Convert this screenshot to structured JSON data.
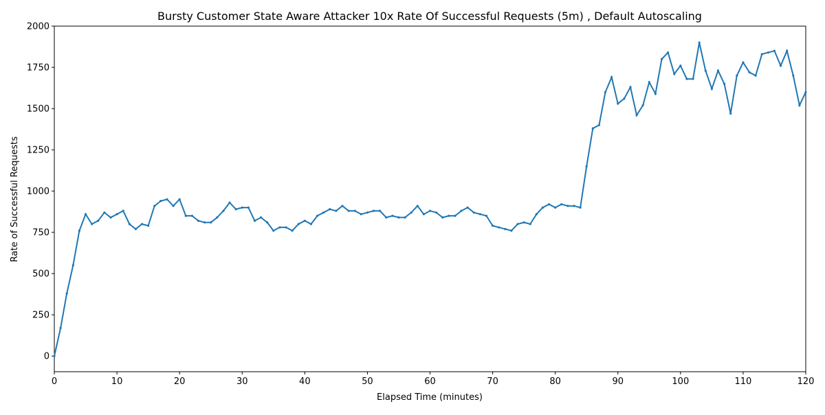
{
  "chart_data": {
    "type": "line",
    "title": "Bursty Customer State Aware Attacker 10x Rate Of Successful Requests (5m) , Default Autoscaling",
    "x_label": "Elapsed Time (minutes)",
    "y_label": "Rate of Successful Requests",
    "x": [
      0,
      1,
      2,
      3,
      4,
      5,
      6,
      7,
      8,
      9,
      10,
      11,
      12,
      13,
      14,
      15,
      16,
      17,
      18,
      19,
      20,
      21,
      22,
      23,
      24,
      25,
      26,
      27,
      28,
      29,
      30,
      31,
      32,
      33,
      34,
      35,
      36,
      37,
      38,
      39,
      40,
      41,
      42,
      43,
      44,
      45,
      46,
      47,
      48,
      49,
      50,
      51,
      52,
      53,
      54,
      55,
      56,
      57,
      58,
      59,
      60,
      61,
      62,
      63,
      64,
      65,
      66,
      67,
      68,
      69,
      70,
      71,
      72,
      73,
      74,
      75,
      76,
      77,
      78,
      79,
      80,
      81,
      82,
      83,
      84,
      85,
      86,
      87,
      88,
      89,
      90,
      91,
      92,
      93,
      94,
      95,
      96,
      97,
      98,
      99,
      100,
      101,
      102,
      103,
      104,
      105,
      106,
      107,
      108,
      109,
      110,
      111,
      112,
      113,
      114,
      115,
      116,
      117,
      118,
      119,
      120
    ],
    "series": [
      {
        "name": "Rate of Successful Requests",
        "color": "#1f77b4",
        "values": [
          0,
          170,
          380,
          550,
          760,
          860,
          800,
          820,
          870,
          840,
          860,
          880,
          800,
          770,
          800,
          790,
          910,
          940,
          950,
          910,
          950,
          850,
          850,
          820,
          810,
          810,
          840,
          880,
          930,
          890,
          900,
          900,
          820,
          840,
          810,
          760,
          780,
          780,
          760,
          800,
          820,
          800,
          850,
          870,
          890,
          880,
          910,
          880,
          880,
          860,
          870,
          880,
          880,
          840,
          850,
          840,
          840,
          870,
          910,
          860,
          880,
          870,
          840,
          850,
          850,
          880,
          900,
          870,
          860,
          850,
          790,
          780,
          770,
          760,
          800,
          810,
          800,
          860,
          900,
          920,
          900,
          920,
          910,
          910,
          900,
          1150,
          1380,
          1400,
          1600,
          1690,
          1530,
          1560,
          1630,
          1460,
          1520,
          1660,
          1590,
          1800,
          1840,
          1710,
          1760,
          1680,
          1680,
          1900,
          1730,
          1620,
          1730,
          1650,
          1470,
          1700,
          1780,
          1720,
          1700,
          1830,
          1840,
          1850,
          1760,
          1850,
          1700,
          1520,
          1600
        ]
      }
    ],
    "xlim": [
      0,
      120
    ],
    "xticks": [
      0,
      10,
      20,
      30,
      40,
      50,
      60,
      70,
      80,
      90,
      100,
      110,
      120
    ],
    "ylim": [
      -95,
      2000
    ],
    "yticks": [
      0,
      250,
      500,
      750,
      1000,
      1250,
      1500,
      1750,
      2000
    ],
    "grid": false
  }
}
